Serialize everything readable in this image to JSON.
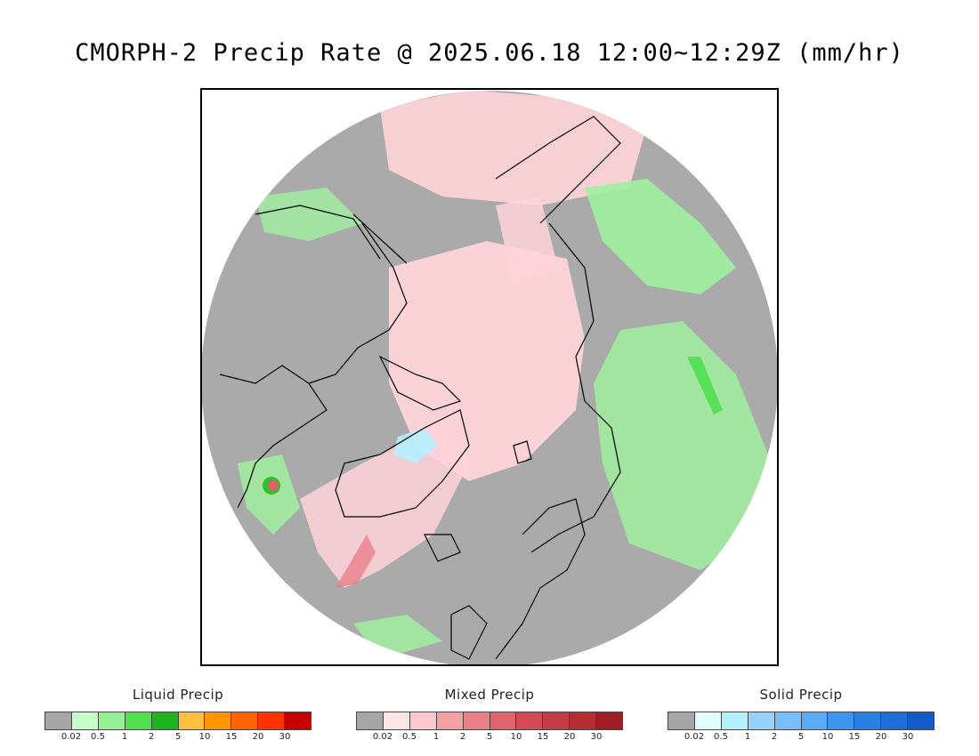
{
  "title": "CMORPH-2 Precip Rate @ 2025.06.18 12:00~12:29Z (mm/hr)",
  "map": {
    "background_color": "#aaaaaa",
    "coast_color": "#000000"
  },
  "legends": [
    {
      "title": "Liquid Precip",
      "colors": [
        "#a6a6a6",
        "#c8ffc8",
        "#96f096",
        "#50e050",
        "#1eb41e",
        "#ffc040",
        "#ff9600",
        "#ff6400",
        "#ff3200",
        "#c80000"
      ],
      "ticks": [
        "0.02",
        "0.5",
        "1",
        "2",
        "5",
        "10",
        "15",
        "20",
        "30"
      ]
    },
    {
      "title": "Mixed Precip",
      "colors": [
        "#a6a6a6",
        "#ffe4e8",
        "#ffc8cc",
        "#f5a0a5",
        "#eb8087",
        "#e0646e",
        "#d24b55",
        "#c33c46",
        "#b42d32",
        "#a01e23"
      ],
      "ticks": [
        "0.02",
        "0.5",
        "1",
        "2",
        "5",
        "10",
        "15",
        "20",
        "30"
      ]
    },
    {
      "title": "Solid Precip",
      "colors": [
        "#a6a6a6",
        "#e0ffff",
        "#b4f0ff",
        "#96d2ff",
        "#78beff",
        "#5aaaf5",
        "#3c96f0",
        "#2882e6",
        "#1e6edc",
        "#145ac8"
      ],
      "ticks": [
        "0.02",
        "0.5",
        "1",
        "2",
        "5",
        "10",
        "15",
        "20",
        "30"
      ]
    }
  ]
}
